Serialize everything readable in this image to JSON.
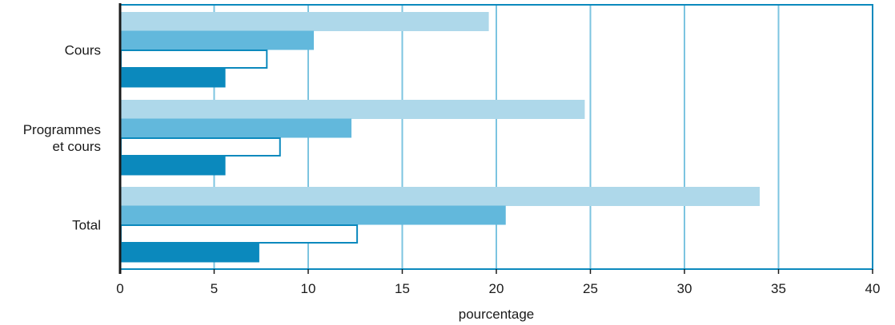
{
  "chart_data": {
    "type": "bar",
    "orientation": "horizontal",
    "title": "",
    "xlabel": "pourcentage",
    "ylabel": "",
    "xlim": [
      0,
      40
    ],
    "xticks": [
      "0",
      "5",
      "10",
      "15",
      "20",
      "25",
      "30",
      "35",
      "40"
    ],
    "grid": true,
    "legend": "none",
    "categories": [
      {
        "lines": [
          "Cours"
        ]
      },
      {
        "lines": [
          "Programmes",
          "et cours"
        ]
      },
      {
        "lines": [
          "Total"
        ]
      }
    ],
    "series": [
      {
        "values": [
          19.6,
          24.7,
          34.0
        ],
        "color": "#aed8ea",
        "style": "filled"
      },
      {
        "values": [
          10.3,
          12.3,
          20.5
        ],
        "color": "#62b8dc",
        "style": "filled"
      },
      {
        "values": [
          7.8,
          8.5,
          12.6
        ],
        "color": "#0b89bd",
        "style": "outline"
      },
      {
        "values": [
          5.6,
          5.6,
          7.4
        ],
        "color": "#0b89bd",
        "style": "filled"
      }
    ]
  }
}
